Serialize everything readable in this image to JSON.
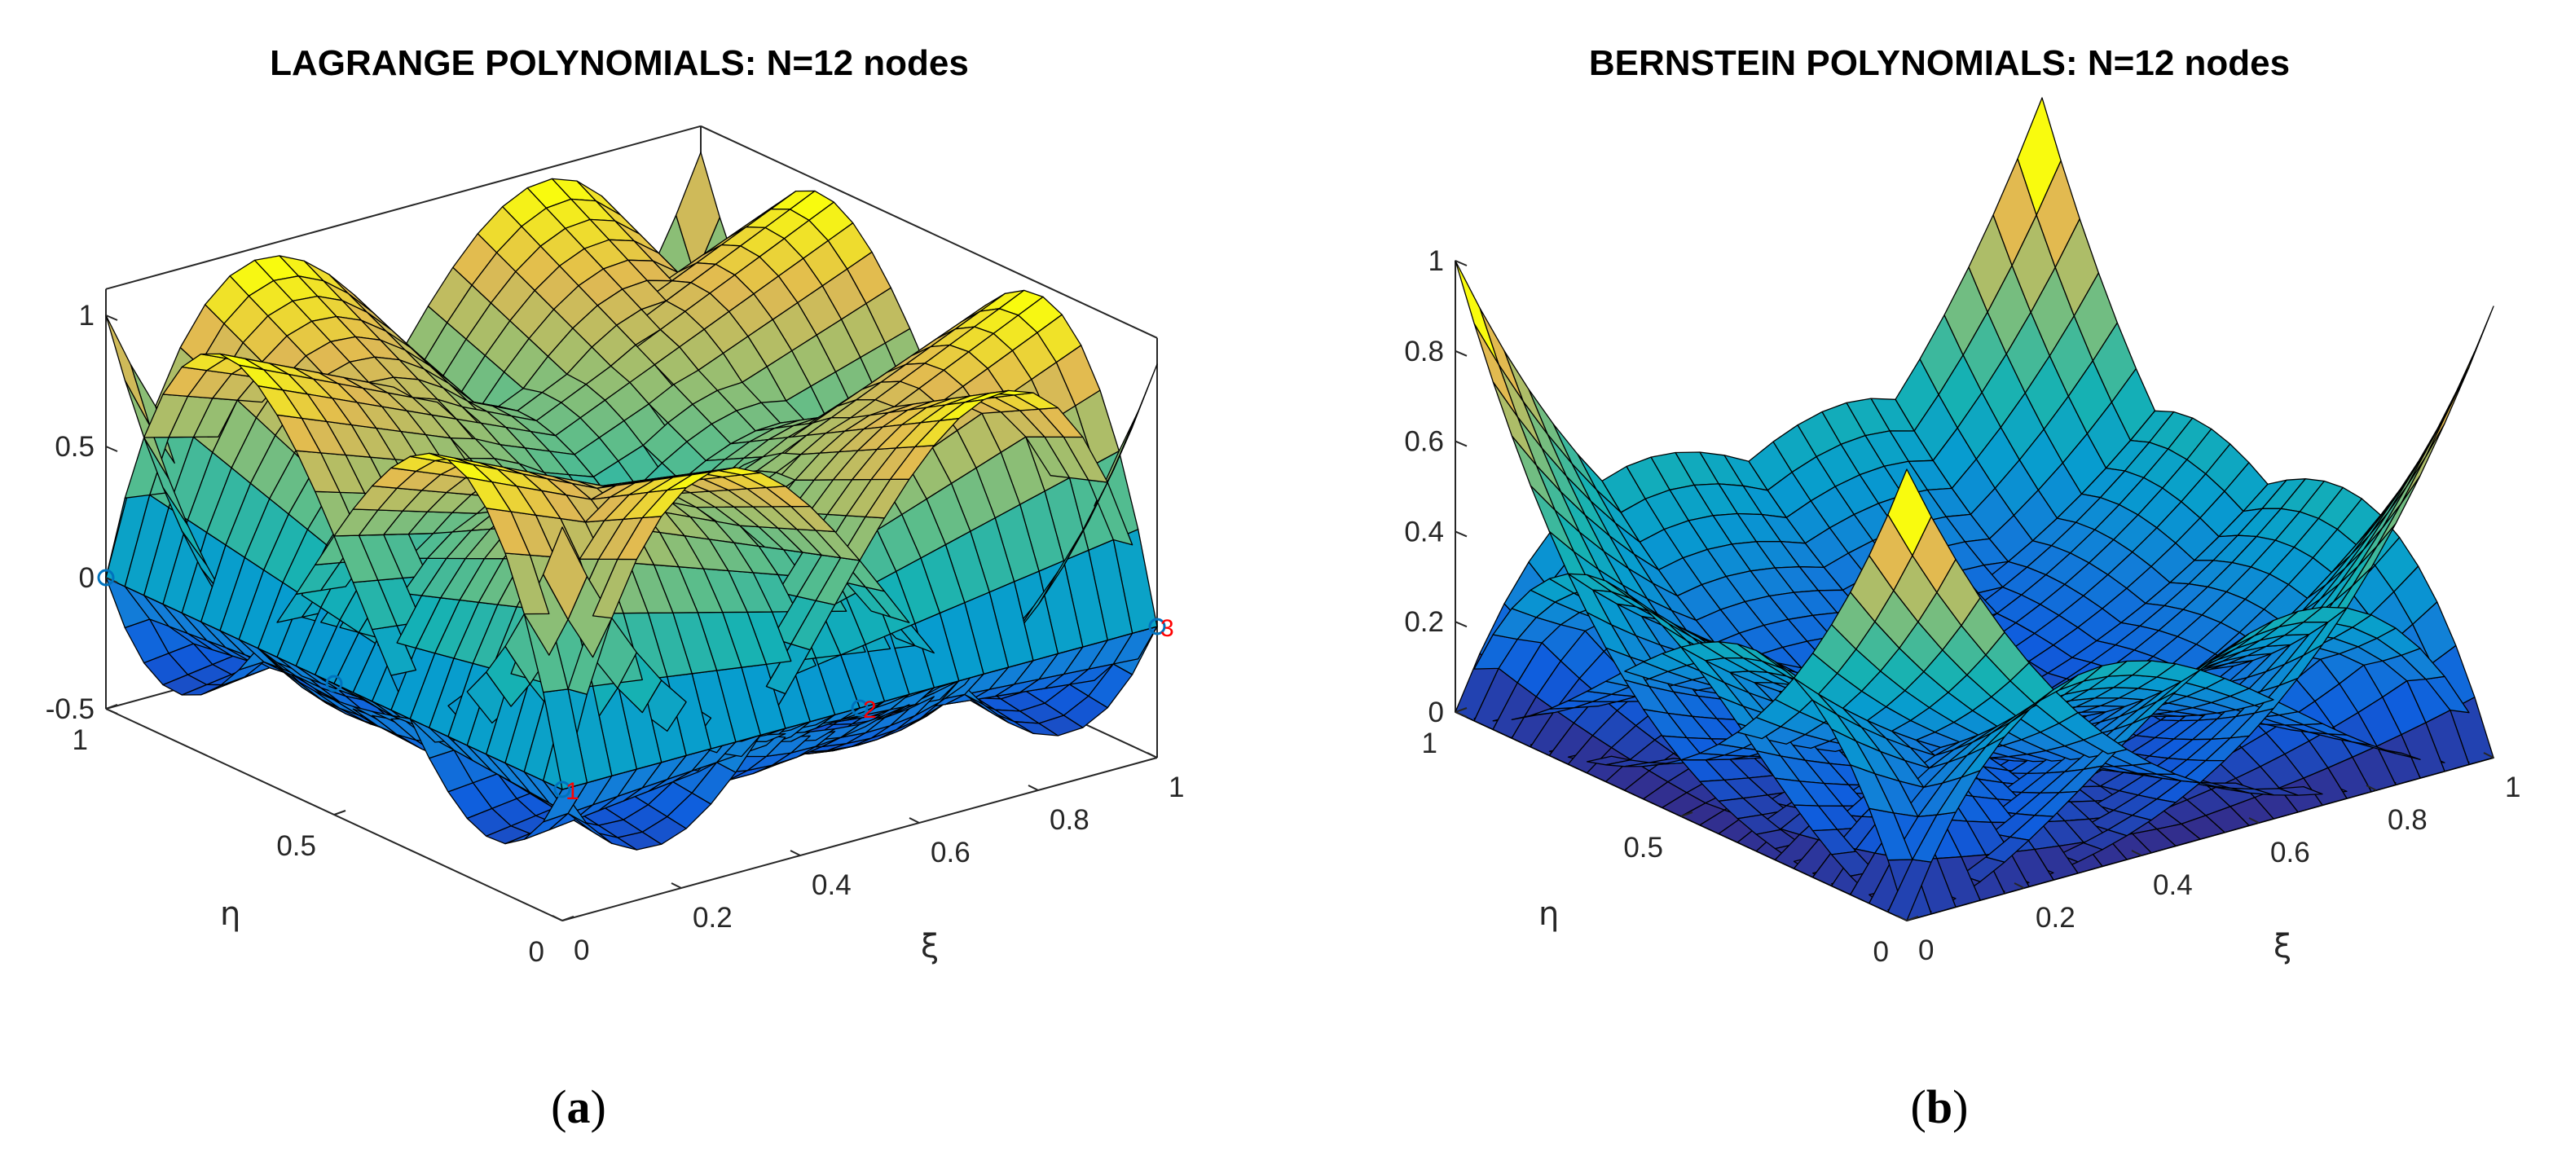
{
  "colors": {
    "mesh_edge": "#000000",
    "node_marker": "#0072bd",
    "node_label": "#ff0000",
    "colormap": "parula"
  },
  "chart_data": [
    {
      "type": "surface",
      "title": "LAGRANGE POLYNOMIALS: N=12 nodes",
      "subcaption": "a",
      "basis": "cubic serendipity Lagrange shape functions, 12 boundary nodes",
      "xlabel": "ξ",
      "ylabel": "η",
      "xlim": [
        0,
        1
      ],
      "ylim": [
        0,
        1
      ],
      "zlim": [
        -0.5,
        1.1
      ],
      "xticks": [
        "0",
        "0.2",
        "0.4",
        "0.6",
        "0.8",
        "1"
      ],
      "yticks": [
        "0",
        "0.5",
        "1"
      ],
      "zticks": [
        "-0.5",
        "0",
        "0.5",
        "1"
      ],
      "box": true,
      "node_labels": [
        "1",
        "2",
        "3"
      ]
    },
    {
      "type": "surface",
      "title": "BERNSTEIN POLYNOMIALS: N=12 nodes",
      "subcaption": "b",
      "basis": "cubic Bernstein boundary functions, 12 nodes",
      "xlabel": "ξ",
      "ylabel": "η",
      "xlim": [
        0,
        1
      ],
      "ylim": [
        0,
        1
      ],
      "zlim": [
        0,
        1.15
      ],
      "xticks": [
        "0",
        "0.2",
        "0.4",
        "0.6",
        "0.8",
        "1"
      ],
      "yticks": [
        "0",
        "0.5",
        "1"
      ],
      "zticks": [
        "0",
        "0.2",
        "0.4",
        "0.6",
        "0.8",
        "1"
      ],
      "box": false
    }
  ]
}
